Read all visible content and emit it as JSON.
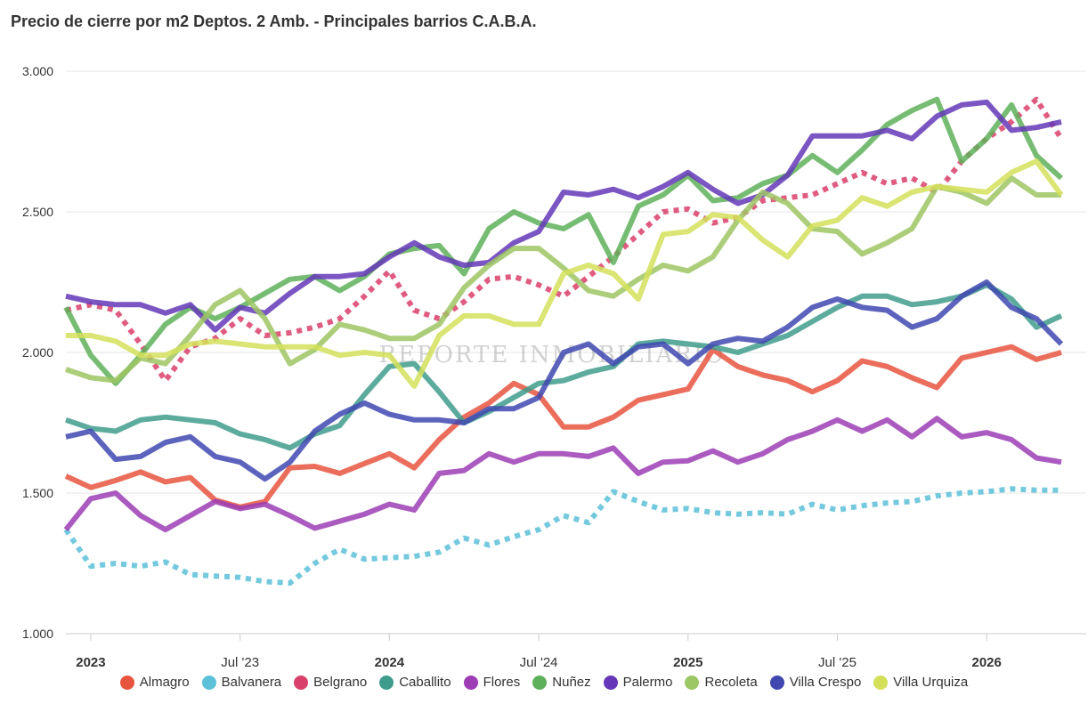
{
  "chart_data": {
    "type": "line",
    "title": "Precio de cierre por m2 Deptos. 2 Amb. - Principales barrios C.A.B.A.",
    "watermark": "REPORTE INMOBILIARIO",
    "xlabel": "",
    "ylabel": "",
    "ylim": [
      1000,
      3000
    ],
    "y_ticks": [
      1000,
      1500,
      2000,
      2500,
      3000
    ],
    "y_tick_labels": [
      "1.000",
      "1.500",
      "2.000",
      "2.500",
      "3.000"
    ],
    "x_range": [
      "2022-12",
      "2026-05"
    ],
    "x_ticks": [
      {
        "month": "2023-01",
        "label": "2023",
        "bold": true
      },
      {
        "month": "2023-07",
        "label": "Jul '23",
        "bold": false
      },
      {
        "month": "2024-01",
        "label": "2024",
        "bold": true
      },
      {
        "month": "2024-07",
        "label": "Jul '24",
        "bold": false
      },
      {
        "month": "2025-01",
        "label": "2025",
        "bold": true
      },
      {
        "month": "2025-07",
        "label": "Jul '25",
        "bold": false
      },
      {
        "month": "2026-01",
        "label": "2026",
        "bold": true
      }
    ],
    "grid": true,
    "legend_position": "bottom",
    "x_start": "2022-12",
    "series": [
      {
        "name": "Almagro",
        "color": "#e8553f",
        "dashed": false,
        "values": [
          1560,
          1520,
          1545,
          1575,
          1540,
          1555,
          1475,
          1450,
          1470,
          1590,
          1595,
          1570,
          1605,
          1640,
          1590,
          1690,
          1770,
          1820,
          1890,
          1850,
          1735,
          1735,
          1770,
          1830,
          1850,
          1870,
          2010,
          1950,
          1920,
          1900,
          1860,
          1900,
          1970,
          1950,
          1910,
          1875,
          1980,
          2000,
          2020,
          1975,
          2000
        ]
      },
      {
        "name": "Balvanera",
        "color": "#5cc0d8",
        "dashed": true,
        "values": [
          1370,
          1240,
          1250,
          1240,
          1255,
          1210,
          1205,
          1200,
          1185,
          1180,
          1250,
          1300,
          1265,
          1270,
          1275,
          1290,
          1340,
          1315,
          1345,
          1370,
          1420,
          1395,
          1505,
          1470,
          1440,
          1445,
          1430,
          1425,
          1430,
          1425,
          1460,
          1440,
          1455,
          1465,
          1470,
          1490,
          1500,
          1505,
          1515,
          1510,
          1510
        ]
      },
      {
        "name": "Belgrano",
        "color": "#d9406a",
        "dashed": true,
        "values": [
          2150,
          2170,
          2150,
          2030,
          1900,
          2020,
          2050,
          2120,
          2060,
          2070,
          2090,
          2120,
          2200,
          2290,
          2150,
          2120,
          2180,
          2260,
          2270,
          2240,
          2200,
          2270,
          2340,
          2420,
          2500,
          2510,
          2460,
          2480,
          2540,
          2550,
          2560,
          2600,
          2640,
          2600,
          2620,
          2570,
          2680,
          2760,
          2820,
          2900,
          2760
        ]
      },
      {
        "name": "Caballito",
        "color": "#3f9c8c",
        "dashed": false,
        "values": [
          1760,
          1730,
          1720,
          1760,
          1770,
          1760,
          1750,
          1710,
          1690,
          1660,
          1710,
          1740,
          1850,
          1950,
          1960,
          1860,
          1750,
          1790,
          1840,
          1890,
          1900,
          1930,
          1950,
          2030,
          2040,
          2030,
          2020,
          2000,
          2030,
          2060,
          2110,
          2160,
          2200,
          2200,
          2170,
          2180,
          2200,
          2240,
          2190,
          2090,
          2130
        ]
      },
      {
        "name": "Flores",
        "color": "#9c3db5",
        "dashed": false,
        "values": [
          1370,
          1480,
          1500,
          1420,
          1370,
          1420,
          1470,
          1445,
          1460,
          1420,
          1375,
          1400,
          1425,
          1460,
          1440,
          1570,
          1580,
          1640,
          1610,
          1640,
          1640,
          1630,
          1660,
          1570,
          1610,
          1615,
          1650,
          1610,
          1640,
          1690,
          1720,
          1760,
          1720,
          1760,
          1700,
          1765,
          1700,
          1715,
          1690,
          1625,
          1610
        ]
      },
      {
        "name": "Nuñez",
        "color": "#5fb05a",
        "dashed": false,
        "values": [
          2160,
          1990,
          1890,
          1990,
          2100,
          2160,
          2120,
          2160,
          2210,
          2260,
          2270,
          2220,
          2270,
          2350,
          2370,
          2380,
          2280,
          2440,
          2500,
          2460,
          2440,
          2490,
          2320,
          2520,
          2560,
          2630,
          2540,
          2550,
          2600,
          2630,
          2700,
          2640,
          2720,
          2810,
          2860,
          2900,
          2680,
          2760,
          2880,
          2700,
          2620
        ]
      },
      {
        "name": "Palermo",
        "color": "#6438b8",
        "dashed": false,
        "values": [
          2200,
          2180,
          2170,
          2170,
          2140,
          2170,
          2080,
          2160,
          2140,
          2210,
          2270,
          2270,
          2280,
          2340,
          2390,
          2340,
          2310,
          2320,
          2390,
          2430,
          2570,
          2560,
          2580,
          2550,
          2590,
          2640,
          2580,
          2530,
          2560,
          2630,
          2770,
          2770,
          2770,
          2790,
          2760,
          2840,
          2880,
          2890,
          2790,
          2800,
          2820
        ]
      },
      {
        "name": "Recoleta",
        "color": "#9dc664",
        "dashed": false,
        "values": [
          1940,
          1910,
          1900,
          1980,
          1960,
          2060,
          2170,
          2220,
          2120,
          1960,
          2010,
          2100,
          2080,
          2050,
          2050,
          2100,
          2230,
          2310,
          2370,
          2370,
          2300,
          2220,
          2200,
          2260,
          2310,
          2290,
          2340,
          2470,
          2570,
          2530,
          2440,
          2430,
          2350,
          2390,
          2440,
          2590,
          2570,
          2530,
          2620,
          2560,
          2560
        ]
      },
      {
        "name": "Villa Crespo",
        "color": "#4048b0",
        "dashed": false,
        "values": [
          1700,
          1720,
          1620,
          1630,
          1680,
          1700,
          1630,
          1610,
          1550,
          1610,
          1720,
          1780,
          1820,
          1780,
          1760,
          1760,
          1750,
          1800,
          1800,
          1840,
          2000,
          2030,
          1960,
          2020,
          2030,
          1960,
          2030,
          2050,
          2040,
          2090,
          2160,
          2190,
          2160,
          2150,
          2090,
          2120,
          2200,
          2250,
          2160,
          2120,
          2030
        ]
      },
      {
        "name": "Villa Urquiza",
        "color": "#d4e05a",
        "dashed": false,
        "values": [
          2060,
          2060,
          2040,
          1990,
          1990,
          2030,
          2040,
          2030,
          2020,
          2020,
          2020,
          1990,
          2000,
          1990,
          1880,
          2060,
          2130,
          2130,
          2100,
          2100,
          2280,
          2310,
          2280,
          2190,
          2420,
          2430,
          2490,
          2480,
          2400,
          2340,
          2450,
          2470,
          2550,
          2520,
          2570,
          2590,
          2580,
          2570,
          2640,
          2680,
          2560
        ]
      }
    ]
  }
}
